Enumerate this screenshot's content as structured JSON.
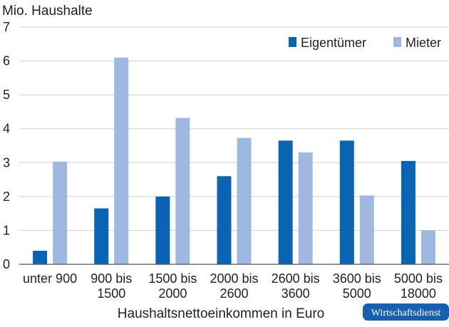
{
  "chart_data": {
    "type": "bar",
    "ylabel": "Mio. Haushalte",
    "xlabel": "Haushaltsnettoeinkommen in Euro",
    "ylim": [
      0,
      7
    ],
    "yticks": [
      0,
      1,
      2,
      3,
      4,
      5,
      6,
      7
    ],
    "grid": "horizontal",
    "legend_position": "top-right",
    "categories": [
      [
        "unter 900"
      ],
      [
        "900 bis",
        "1500"
      ],
      [
        "1500 bis",
        "2000"
      ],
      [
        "2000 bis",
        "2600"
      ],
      [
        "2600 bis",
        "3600"
      ],
      [
        "3600 bis",
        "5000"
      ],
      [
        "5000 bis",
        "18000"
      ]
    ],
    "series": [
      {
        "name": "Eigentümer",
        "color": "#0a64b4",
        "values": [
          0.4,
          1.65,
          2.0,
          2.6,
          3.65,
          3.65,
          3.05
        ]
      },
      {
        "name": "Mieter",
        "color": "#9eb8e2",
        "values": [
          3.03,
          6.1,
          4.32,
          3.73,
          3.3,
          2.03,
          1.0
        ]
      }
    ]
  },
  "badge": {
    "label": "Wirtschaftsdienst",
    "color": "#1560b0"
  }
}
